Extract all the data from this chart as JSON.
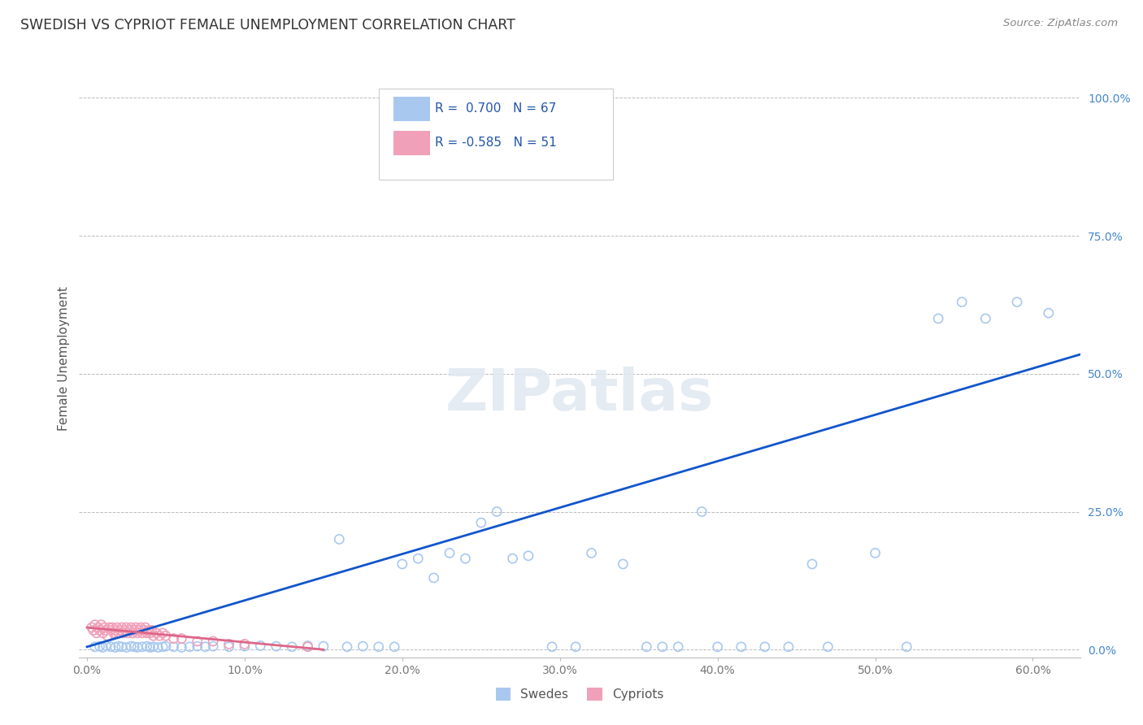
{
  "title": "SWEDISH VS CYPRIOT FEMALE UNEMPLOYMENT CORRELATION CHART",
  "source": "Source: ZipAtlas.com",
  "ylabel": "Female Unemployment",
  "x_ticks": [
    0.0,
    0.1,
    0.2,
    0.3,
    0.4,
    0.5,
    0.6
  ],
  "x_tick_labels": [
    "0.0%",
    "10.0%",
    "20.0%",
    "30.0%",
    "40.0%",
    "50.0%",
    "60.0%"
  ],
  "y_ticks": [
    0.0,
    0.25,
    0.5,
    0.75,
    1.0
  ],
  "y_tick_labels": [
    "0.0%",
    "25.0%",
    "50.0%",
    "75.0%",
    "100.0%"
  ],
  "xlim": [
    -0.005,
    0.63
  ],
  "ylim": [
    -0.015,
    1.07
  ],
  "swede_color": "#a8c8f0",
  "cypriot_color": "#f0a0b8",
  "swede_line_color": "#1155cc",
  "cypriot_line_color": "#dd6688",
  "legend_swede_R": "R =  0.700",
  "legend_swede_N": "N = 67",
  "legend_cypriot_R": "R = -0.585",
  "legend_cypriot_N": "N = 51",
  "legend_label_swede": "Swedes",
  "legend_label_cypriot": "Cypriots",
  "swede_points_x": [
    0.005,
    0.008,
    0.01,
    0.012,
    0.015,
    0.018,
    0.02,
    0.022,
    0.025,
    0.028,
    0.03,
    0.032,
    0.035,
    0.038,
    0.04,
    0.042,
    0.045,
    0.048,
    0.05,
    0.055,
    0.06,
    0.065,
    0.07,
    0.075,
    0.08,
    0.09,
    0.1,
    0.11,
    0.12,
    0.13,
    0.14,
    0.15,
    0.16,
    0.165,
    0.175,
    0.185,
    0.195,
    0.2,
    0.21,
    0.22,
    0.23,
    0.24,
    0.25,
    0.26,
    0.27,
    0.28,
    0.295,
    0.31,
    0.32,
    0.34,
    0.355,
    0.365,
    0.375,
    0.39,
    0.4,
    0.415,
    0.43,
    0.445,
    0.46,
    0.47,
    0.5,
    0.52,
    0.54,
    0.555,
    0.57,
    0.59,
    0.61
  ],
  "swede_points_y": [
    0.005,
    0.006,
    0.004,
    0.007,
    0.005,
    0.004,
    0.006,
    0.005,
    0.004,
    0.006,
    0.005,
    0.004,
    0.005,
    0.006,
    0.004,
    0.005,
    0.004,
    0.005,
    0.006,
    0.005,
    0.004,
    0.005,
    0.006,
    0.005,
    0.006,
    0.005,
    0.006,
    0.007,
    0.006,
    0.005,
    0.007,
    0.006,
    0.2,
    0.005,
    0.006,
    0.005,
    0.005,
    0.155,
    0.165,
    0.13,
    0.175,
    0.165,
    0.23,
    0.25,
    0.165,
    0.17,
    0.005,
    0.005,
    0.175,
    0.155,
    0.005,
    0.005,
    0.005,
    0.25,
    0.005,
    0.005,
    0.005,
    0.005,
    0.155,
    0.005,
    0.175,
    0.005,
    0.6,
    0.63,
    0.6,
    0.63,
    0.61
  ],
  "cypriot_points_x": [
    0.003,
    0.004,
    0.005,
    0.006,
    0.007,
    0.008,
    0.009,
    0.01,
    0.011,
    0.012,
    0.013,
    0.014,
    0.015,
    0.016,
    0.017,
    0.018,
    0.019,
    0.02,
    0.021,
    0.022,
    0.023,
    0.024,
    0.025,
    0.026,
    0.027,
    0.028,
    0.029,
    0.03,
    0.031,
    0.032,
    0.033,
    0.034,
    0.035,
    0.036,
    0.037,
    0.038,
    0.039,
    0.04,
    0.041,
    0.042,
    0.044,
    0.046,
    0.048,
    0.05,
    0.055,
    0.06,
    0.07,
    0.08,
    0.09,
    0.1,
    0.14
  ],
  "cypriot_points_y": [
    0.04,
    0.035,
    0.045,
    0.03,
    0.04,
    0.035,
    0.045,
    0.03,
    0.04,
    0.035,
    0.025,
    0.04,
    0.035,
    0.04,
    0.03,
    0.035,
    0.04,
    0.03,
    0.035,
    0.04,
    0.03,
    0.035,
    0.04,
    0.03,
    0.035,
    0.04,
    0.03,
    0.035,
    0.04,
    0.03,
    0.035,
    0.04,
    0.03,
    0.035,
    0.04,
    0.03,
    0.035,
    0.03,
    0.035,
    0.025,
    0.03,
    0.025,
    0.03,
    0.025,
    0.02,
    0.02,
    0.015,
    0.015,
    0.01,
    0.01,
    0.005
  ],
  "swede_trend_x": [
    0.0,
    0.63
  ],
  "swede_trend_y": [
    0.005,
    0.535
  ],
  "cypriot_trend_x": [
    0.0,
    0.15
  ],
  "cypriot_trend_y": [
    0.04,
    0.0
  ],
  "background_color": "#ffffff",
  "grid_color": "#bbbbbb",
  "title_color": "#333333",
  "marker_size": 8,
  "watermark": "ZIPatlas"
}
